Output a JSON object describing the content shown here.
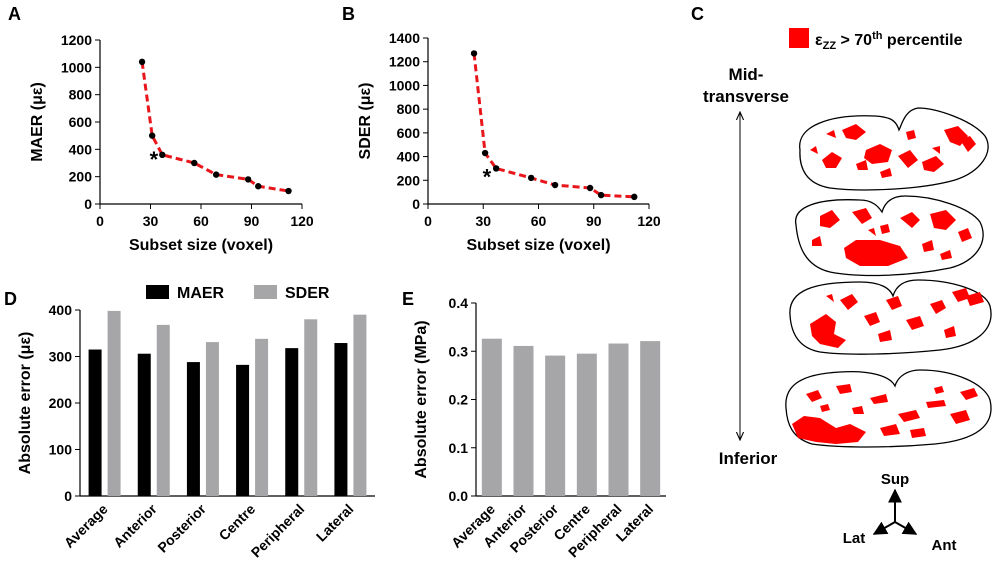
{
  "panel_labels": {
    "a": "A",
    "b": "B",
    "c": "C",
    "d": "D",
    "e": "E"
  },
  "colors": {
    "trend": "#e8161b",
    "maer": "#000000",
    "sder": "#a6a6a9",
    "strain": "#ff0000"
  },
  "chart_data": [
    {
      "id": "A",
      "type": "line",
      "title": "",
      "xlabel": "Subset size (voxel)",
      "ylabel": "MAER (με)",
      "x": [
        25,
        31,
        37,
        56,
        69,
        88,
        94,
        112
      ],
      "y": [
        1040,
        500,
        360,
        300,
        215,
        180,
        130,
        95
      ],
      "xlim": [
        0,
        120
      ],
      "xticks": [
        0,
        30,
        60,
        90,
        120
      ],
      "ylim": [
        0,
        1200
      ],
      "yticks": [
        0,
        200,
        400,
        600,
        800,
        1000,
        1200
      ],
      "annotation": "*",
      "annotation_at": {
        "x": 32,
        "y": 330
      }
    },
    {
      "id": "B",
      "type": "line",
      "title": "",
      "xlabel": "Subset size (voxel)",
      "ylabel": "SDER (με)",
      "x": [
        25,
        31,
        37,
        56,
        69,
        88,
        94,
        112
      ],
      "y": [
        1270,
        430,
        300,
        220,
        160,
        135,
        75,
        60
      ],
      "xlim": [
        0,
        120
      ],
      "xticks": [
        0,
        30,
        60,
        90,
        120
      ],
      "ylim": [
        0,
        1400
      ],
      "yticks": [
        0,
        200,
        400,
        600,
        800,
        1000,
        1200,
        1400
      ],
      "annotation": "*",
      "annotation_at": {
        "x": 32,
        "y": 230
      }
    },
    {
      "id": "D",
      "type": "bar",
      "xlabel": "",
      "ylabel": "Absolute error (με)",
      "categories": [
        "Average",
        "Anterior",
        "Posterior",
        "Centre",
        "Peripheral",
        "Lateral"
      ],
      "series": [
        {
          "name": "MAER",
          "values": [
            315,
            306,
            288,
            282,
            318,
            329
          ]
        },
        {
          "name": "SDER",
          "values": [
            398,
            368,
            331,
            338,
            380,
            390
          ]
        }
      ],
      "ylim": [
        0,
        400
      ],
      "yticks": [
        0,
        100,
        200,
        300,
        400
      ],
      "legend": "top"
    },
    {
      "id": "E",
      "type": "bar",
      "xlabel": "",
      "ylabel": "Absolute error (MPa)",
      "categories": [
        "Average",
        "Anterior",
        "Posterior",
        "Centre",
        "Peripheral",
        "Lateral"
      ],
      "series": [
        {
          "name": "",
          "values": [
            0.326,
            0.311,
            0.291,
            0.295,
            0.316,
            0.321
          ]
        }
      ],
      "ylim": [
        0,
        0.4
      ],
      "yticks": [
        "0.0",
        "0.1",
        "0.2",
        "0.3",
        "0.4"
      ]
    }
  ],
  "panel_c": {
    "legend_label": "ε",
    "legend_sub": "ZZ",
    "legend_rest": " > 70",
    "legend_sup": "th",
    "legend_tail": " percentile",
    "top_label_1": "Mid-",
    "top_label_2": "transverse",
    "bottom_label": "Inferior",
    "axis_sup": "Sup",
    "axis_lat": "Lat",
    "axis_ant": "Ant"
  }
}
